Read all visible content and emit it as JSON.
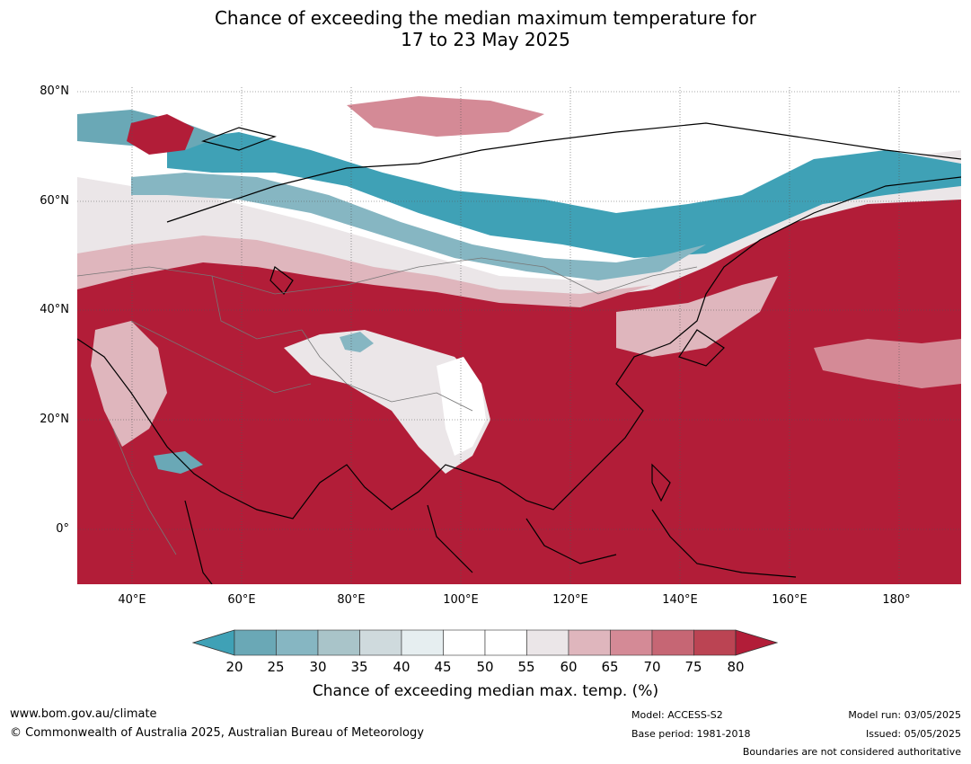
{
  "title": {
    "line1": "Chance of exceeding the median maximum temperature for",
    "line2": "17 to 23 May 2025"
  },
  "map": {
    "lat_labels": [
      "80°N",
      "60°N",
      "40°N",
      "20°N",
      "0°"
    ],
    "lon_labels": [
      "40°E",
      "60°E",
      "80°E",
      "100°E",
      "120°E",
      "140°E",
      "160°E",
      "180°"
    ],
    "lat_values": [
      80,
      60,
      40,
      20,
      0
    ],
    "lon_values": [
      40,
      60,
      80,
      100,
      120,
      140,
      160,
      180
    ],
    "lon_range": [
      30,
      191
    ],
    "lat_range": [
      -10,
      81
    ]
  },
  "colorbar": {
    "ticks": [
      "20",
      "25",
      "30",
      "35",
      "40",
      "45",
      "50",
      "55",
      "60",
      "65",
      "70",
      "75",
      "80"
    ],
    "colors": [
      "#3fa1b6",
      "#6aa8b6",
      "#86b6c2",
      "#a9c4c9",
      "#cfdadd",
      "#e6eef0",
      "#ffffff",
      "#ffffff",
      "#ebe6e8",
      "#dfb6bd",
      "#d48a96",
      "#c66674",
      "#bb4453",
      "#b21d38"
    ],
    "extend": "both",
    "label": "Chance of exceeding median max. temp. (%)"
  },
  "footer": {
    "website": "www.bom.gov.au/climate",
    "copyright": "© Commonwealth of Australia 2025, Australian Bureau of Meteorology",
    "model": "Model: ACCESS-S2",
    "base_period": "Base period: 1981-2018",
    "model_run": "Model run: 03/05/2025",
    "issued": "Issued: 05/05/2025",
    "disclaimer": "Boundaries are not considered authoritative"
  }
}
